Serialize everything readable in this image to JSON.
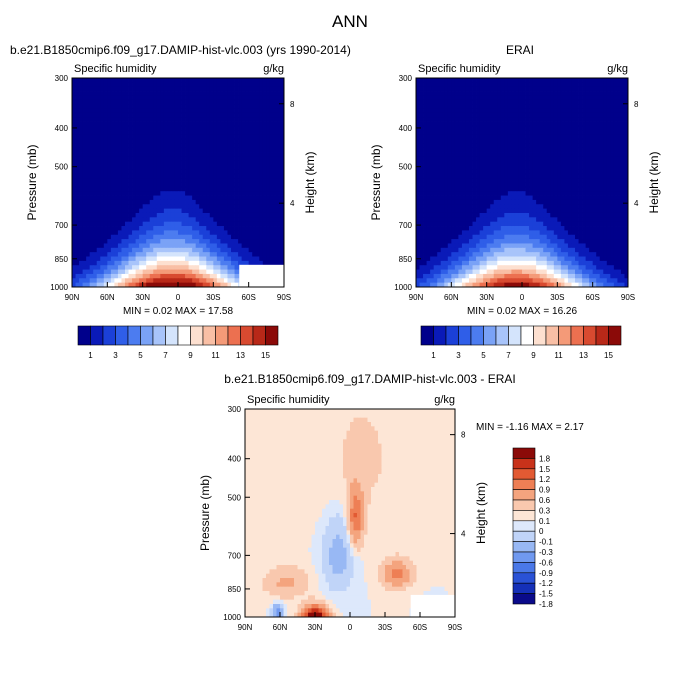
{
  "figure": {
    "title": "ANN",
    "top_left_title": "b.e21.B1850cmip6.f09_g17.DAMIP-hist-vlc.003 (yrs 1990-2014)",
    "top_right_title": "ERAI",
    "bottom_title": "b.e21.B1850cmip6.f09_g17.DAMIP-hist-vlc.003 - ERAI"
  },
  "colors": {
    "abs_scale": [
      "#00008b",
      "#0a1ab8",
      "#1b40d8",
      "#2f5ee8",
      "#4c7cf0",
      "#7aa2f6",
      "#a8c4fa",
      "#d4e4fc",
      "#ffffff",
      "#fde0d0",
      "#f9bfa5",
      "#f49a78",
      "#ec7050",
      "#d84a30",
      "#b82818",
      "#8b0a08"
    ],
    "diff_scale": [
      "#0a0a8a",
      "#1530b8",
      "#2a52d6",
      "#4a78e8",
      "#7099f0",
      "#98b8f4",
      "#c0d4f8",
      "#dde8fb",
      "#fde6d6",
      "#f9c8ae",
      "#f4a47e",
      "#ee7f55",
      "#e25a33",
      "#c8321a",
      "#8b0a08"
    ],
    "frame": "#000000"
  },
  "chart_data": [
    {
      "type": "heatmap",
      "panel": "model",
      "left_label": "Specific humidity",
      "right_label": "g/kg",
      "ylabel": "Pressure (mb)",
      "ylabel_right": "Height (km)",
      "y_ticks": [
        "300",
        "400",
        "500",
        "700",
        "850",
        "1000"
      ],
      "y_tick_values": [
        300,
        400,
        500,
        700,
        850,
        1000
      ],
      "ylim": [
        1000,
        300
      ],
      "y_right_ticks": [
        "8",
        "4"
      ],
      "y_right_values": [
        8,
        4
      ],
      "x_ticks": [
        "90N",
        "60N",
        "30N",
        "0",
        "30S",
        "60S",
        "90S"
      ],
      "x_tick_values": [
        90,
        60,
        30,
        0,
        -30,
        -60,
        -90
      ],
      "xlim": [
        90,
        -90
      ],
      "min": 0.02,
      "max": 17.58,
      "stats_text": "MIN =  0.02   MAX =  17.58",
      "peak": {
        "lat": 5,
        "pressure": 1000,
        "value": 17.58
      },
      "colorbar_labels": [
        "1",
        "3",
        "5",
        "7",
        "9",
        "11",
        "13",
        "15"
      ],
      "colorbar_levels": [
        0,
        1,
        2,
        3,
        4,
        5,
        6,
        7,
        8,
        9,
        10,
        11,
        12,
        13,
        14,
        15,
        16
      ]
    },
    {
      "type": "heatmap",
      "panel": "obs",
      "left_label": "Specific humidity",
      "right_label": "g/kg",
      "ylabel": "Pressure (mb)",
      "ylabel_right": "Height (km)",
      "y_ticks": [
        "300",
        "400",
        "500",
        "700",
        "850",
        "1000"
      ],
      "y_tick_values": [
        300,
        400,
        500,
        700,
        850,
        1000
      ],
      "ylim": [
        1000,
        300
      ],
      "y_right_ticks": [
        "8",
        "4"
      ],
      "y_right_values": [
        8,
        4
      ],
      "x_ticks": [
        "90N",
        "60N",
        "30N",
        "0",
        "30S",
        "60S",
        "90S"
      ],
      "x_tick_values": [
        90,
        60,
        30,
        0,
        -30,
        -60,
        -90
      ],
      "xlim": [
        90,
        -90
      ],
      "min": 0.02,
      "max": 16.26,
      "stats_text": "MIN =  0.02   MAX =  16.26",
      "peak": {
        "lat": 5,
        "pressure": 1000,
        "value": 16.26
      },
      "colorbar_labels": [
        "1",
        "3",
        "5",
        "7",
        "9",
        "11",
        "13",
        "15"
      ],
      "colorbar_levels": [
        0,
        1,
        2,
        3,
        4,
        5,
        6,
        7,
        8,
        9,
        10,
        11,
        12,
        13,
        14,
        15,
        16
      ]
    },
    {
      "type": "heatmap",
      "panel": "difference",
      "left_label": "Specific humidity",
      "right_label": "g/kg",
      "ylabel": "Pressure (mb)",
      "ylabel_right": "Height (km)",
      "y_ticks": [
        "300",
        "400",
        "500",
        "700",
        "850",
        "1000"
      ],
      "y_tick_values": [
        300,
        400,
        500,
        700,
        850,
        1000
      ],
      "ylim": [
        1000,
        300
      ],
      "y_right_ticks": [
        "8",
        "4"
      ],
      "y_right_values": [
        8,
        4
      ],
      "x_ticks": [
        "90N",
        "60N",
        "30N",
        "0",
        "30S",
        "60S",
        "90S"
      ],
      "x_tick_values": [
        90,
        60,
        30,
        0,
        -30,
        -60,
        -90
      ],
      "xlim": [
        90,
        -90
      ],
      "min": -1.16,
      "max": 2.17,
      "stats_text": "MIN = -1.16   MAX =   2.17",
      "colorbar_labels": [
        "1.8",
        "1.5",
        "1.2",
        "0.9",
        "0.6",
        "0.3",
        "0.1",
        "0",
        "-0.1",
        "-0.3",
        "-0.6",
        "-0.9",
        "-1.2",
        "-1.5",
        "-1.8"
      ]
    }
  ]
}
